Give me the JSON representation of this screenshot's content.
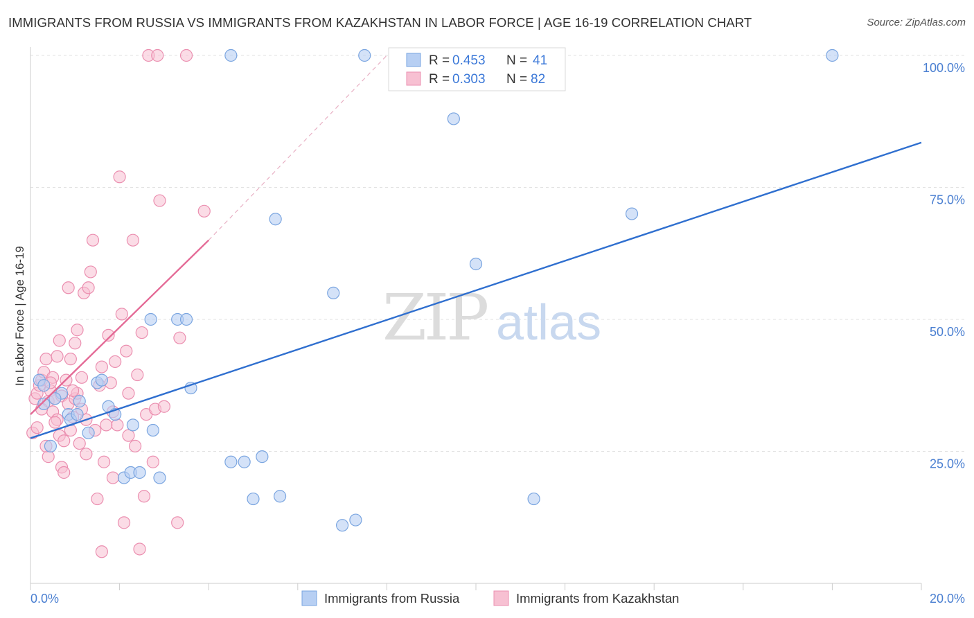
{
  "chart_data": {
    "type": "scatter",
    "title": "IMMIGRANTS FROM RUSSIA VS IMMIGRANTS FROM KAZAKHSTAN IN LABOR FORCE | AGE 16-19 CORRELATION CHART",
    "source": "Source: ZipAtlas.com",
    "ylabel": "In Labor Force | Age 16-19",
    "xlim": [
      0,
      20
    ],
    "ylim": [
      0,
      100
    ],
    "x_tick_labels": [
      "0.0%",
      "20.0%"
    ],
    "y_tick_labels": [
      "25.0%",
      "50.0%",
      "75.0%",
      "100.0%"
    ],
    "y_tick_values": [
      25,
      50,
      75,
      100
    ],
    "watermark": [
      "ZIP",
      "atlas"
    ],
    "legend": {
      "r_label": "R =",
      "n_label": "N =",
      "entries": [
        {
          "r": "0.453",
          "n": "41"
        },
        {
          "r": "0.303",
          "n": "82"
        }
      ]
    },
    "colors": {
      "russia_fill": "#b7cff3",
      "russia_stroke": "#7aa5e0",
      "russia_line": "#2f6fcf",
      "kaz_fill": "#f7c0d2",
      "kaz_stroke": "#eb8fb0",
      "kaz_line": "#e46a96",
      "axis_text": "#4a7fd1",
      "grid": "#e2e2e2"
    },
    "series": [
      {
        "name": "Immigrants from Russia",
        "trend": {
          "x0": 0,
          "y0": 27.5,
          "x1": 20,
          "y1": 83.5
        },
        "points": [
          [
            0.2,
            38.5
          ],
          [
            0.3,
            34.0
          ],
          [
            0.45,
            26.0
          ],
          [
            0.7,
            36.0
          ],
          [
            0.85,
            32.0
          ],
          [
            0.9,
            31.0
          ],
          [
            1.05,
            32.0
          ],
          [
            1.1,
            34.5
          ],
          [
            1.3,
            28.5
          ],
          [
            1.5,
            38.0
          ],
          [
            1.6,
            38.5
          ],
          [
            1.75,
            33.5
          ],
          [
            1.9,
            32.0
          ],
          [
            2.1,
            20.0
          ],
          [
            2.25,
            21.0
          ],
          [
            2.3,
            30.0
          ],
          [
            2.45,
            21.0
          ],
          [
            2.7,
            50.0
          ],
          [
            2.75,
            29.0
          ],
          [
            2.9,
            20.0
          ],
          [
            3.3,
            50.0
          ],
          [
            3.5,
            50.0
          ],
          [
            3.6,
            37.0
          ],
          [
            4.5,
            23.0
          ],
          [
            4.8,
            23.0
          ],
          [
            5.0,
            16.0
          ],
          [
            5.2,
            24.0
          ],
          [
            5.5,
            69.0
          ],
          [
            5.6,
            16.5
          ],
          [
            6.8,
            55.0
          ],
          [
            7.0,
            11.0
          ],
          [
            7.3,
            12.0
          ],
          [
            7.5,
            100.0
          ],
          [
            9.5,
            88.0
          ],
          [
            10.0,
            60.5
          ],
          [
            11.3,
            16.0
          ],
          [
            13.5,
            70.0
          ],
          [
            18.0,
            100.0
          ],
          [
            4.5,
            100.0
          ],
          [
            0.3,
            37.5
          ],
          [
            0.55,
            35.0
          ]
        ]
      },
      {
        "name": "Immigrants from Kazakhstan",
        "trend": {
          "x0": 0,
          "y0": 32.0,
          "x1": 4.0,
          "y1": 65.0
        },
        "trend_ext": {
          "x0": 4.0,
          "y0": 65.0,
          "x1": 8.0,
          "y1": 100.0
        },
        "points": [
          [
            0.05,
            28.5
          ],
          [
            0.1,
            35.0
          ],
          [
            0.15,
            36.0
          ],
          [
            0.2,
            37.5
          ],
          [
            0.25,
            38.5
          ],
          [
            0.3,
            40.0
          ],
          [
            0.35,
            42.5
          ],
          [
            0.4,
            34.5
          ],
          [
            0.45,
            36.5
          ],
          [
            0.5,
            32.5
          ],
          [
            0.5,
            39.0
          ],
          [
            0.55,
            35.0
          ],
          [
            0.6,
            31.0
          ],
          [
            0.6,
            43.0
          ],
          [
            0.65,
            28.0
          ],
          [
            0.65,
            46.0
          ],
          [
            0.7,
            22.0
          ],
          [
            0.7,
            35.5
          ],
          [
            0.75,
            21.0
          ],
          [
            0.8,
            38.5
          ],
          [
            0.85,
            34.0
          ],
          [
            0.85,
            56.0
          ],
          [
            0.9,
            29.0
          ],
          [
            0.9,
            42.5
          ],
          [
            0.95,
            31.5
          ],
          [
            1.0,
            45.5
          ],
          [
            1.0,
            35.0
          ],
          [
            1.05,
            36.0
          ],
          [
            1.1,
            26.5
          ],
          [
            1.15,
            39.0
          ],
          [
            1.2,
            55.0
          ],
          [
            1.25,
            31.0
          ],
          [
            1.25,
            24.5
          ],
          [
            1.3,
            56.0
          ],
          [
            1.35,
            59.0
          ],
          [
            1.4,
            65.0
          ],
          [
            1.45,
            29.0
          ],
          [
            1.5,
            16.0
          ],
          [
            1.55,
            37.5
          ],
          [
            1.6,
            6.0
          ],
          [
            1.65,
            23.0
          ],
          [
            1.7,
            30.0
          ],
          [
            1.75,
            47.0
          ],
          [
            1.8,
            38.0
          ],
          [
            1.85,
            20.0
          ],
          [
            1.9,
            42.0
          ],
          [
            1.95,
            30.0
          ],
          [
            2.0,
            77.0
          ],
          [
            2.05,
            51.0
          ],
          [
            2.1,
            11.5
          ],
          [
            2.15,
            44.0
          ],
          [
            2.2,
            36.0
          ],
          [
            2.3,
            65.0
          ],
          [
            2.35,
            26.0
          ],
          [
            2.4,
            39.5
          ],
          [
            2.45,
            6.5
          ],
          [
            2.5,
            47.5
          ],
          [
            2.55,
            16.5
          ],
          [
            2.6,
            32.0
          ],
          [
            2.65,
            100.0
          ],
          [
            2.75,
            23.0
          ],
          [
            2.8,
            33.0
          ],
          [
            2.85,
            100.0
          ],
          [
            2.9,
            72.5
          ],
          [
            3.0,
            33.5
          ],
          [
            3.3,
            11.5
          ],
          [
            3.35,
            46.5
          ],
          [
            3.5,
            100.0
          ],
          [
            3.9,
            70.5
          ],
          [
            0.15,
            29.5
          ],
          [
            0.4,
            24.0
          ],
          [
            1.15,
            33.0
          ],
          [
            0.95,
            36.5
          ],
          [
            0.55,
            30.5
          ],
          [
            0.25,
            33.0
          ],
          [
            1.6,
            41.0
          ],
          [
            1.05,
            48.0
          ],
          [
            0.75,
            27.0
          ],
          [
            2.2,
            28.0
          ],
          [
            0.35,
            26.0
          ],
          [
            1.85,
            32.5
          ],
          [
            0.45,
            38.0
          ]
        ]
      }
    ]
  }
}
